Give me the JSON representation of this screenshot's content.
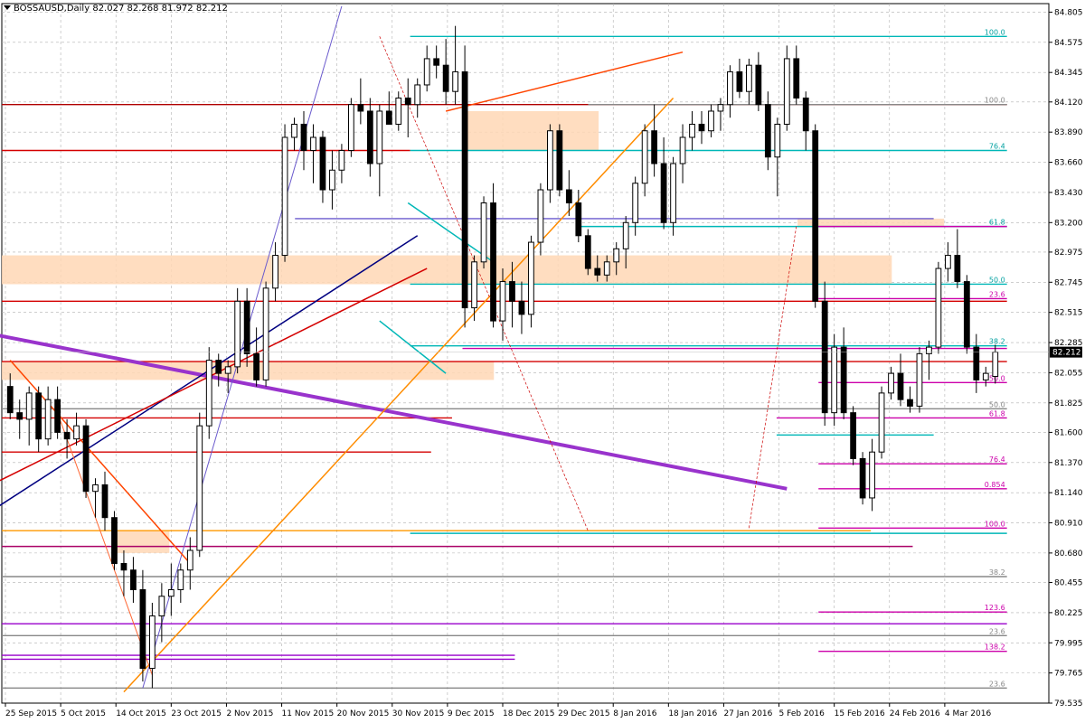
{
  "header": {
    "symbol_tf": "BOSSAUSD,Daily",
    "ohlc": "82.027 82.268 81.972 82.212"
  },
  "price_tag": "82.212",
  "chart_data": {
    "type": "candlestick",
    "title": "BOSSAUSD,Daily",
    "ylim": [
      79.535,
      84.87
    ],
    "grid": true,
    "y_ticks": [
      "84.805",
      "84.575",
      "84.345",
      "84.120",
      "83.890",
      "83.660",
      "83.430",
      "83.200",
      "82.975",
      "82.745",
      "82.515",
      "82.285",
      "82.055",
      "81.825",
      "81.600",
      "81.370",
      "81.140",
      "80.910",
      "80.680",
      "80.455",
      "80.225",
      "79.995",
      "79.765",
      "79.535"
    ],
    "x_ticks": [
      "25 Sep 2015",
      "5 Oct 2015",
      "14 Oct 2015",
      "23 Oct 2015",
      "2 Nov 2015",
      "11 Nov 2015",
      "20 Nov 2015",
      "30 Nov 2015",
      "9 Dec 2015",
      "18 Dec 2015",
      "29 Dec 2015",
      "8 Jan 2016",
      "18 Jan 2016",
      "27 Jan 2016",
      "5 Feb 2016",
      "15 Feb 2016",
      "24 Feb 2016",
      "4 Mar 2016"
    ],
    "candles": [
      [
        81.95,
        82.05,
        81.7,
        81.75
      ],
      [
        81.75,
        81.85,
        81.55,
        81.7
      ],
      [
        81.7,
        81.95,
        81.5,
        81.9
      ],
      [
        81.9,
        81.95,
        81.45,
        81.55
      ],
      [
        81.55,
        81.95,
        81.5,
        81.85
      ],
      [
        81.85,
        81.95,
        81.55,
        81.6
      ],
      [
        81.6,
        81.7,
        81.4,
        81.55
      ],
      [
        81.55,
        81.75,
        81.5,
        81.65
      ],
      [
        81.65,
        81.7,
        81.1,
        81.15
      ],
      [
        81.15,
        81.25,
        80.95,
        81.2
      ],
      [
        81.2,
        81.3,
        80.85,
        80.95
      ],
      [
        80.95,
        81.0,
        80.55,
        80.6
      ],
      [
        80.6,
        80.7,
        80.35,
        80.55
      ],
      [
        80.55,
        80.65,
        80.3,
        80.4
      ],
      [
        80.4,
        80.55,
        79.7,
        79.8
      ],
      [
        79.8,
        80.3,
        79.65,
        80.2
      ],
      [
        80.2,
        80.45,
        80.0,
        80.35
      ],
      [
        80.35,
        80.6,
        80.2,
        80.4
      ],
      [
        80.4,
        80.6,
        80.3,
        80.55
      ],
      [
        80.55,
        80.8,
        80.4,
        80.7
      ],
      [
        80.7,
        81.75,
        80.65,
        81.65
      ],
      [
        81.65,
        82.25,
        81.55,
        82.15
      ],
      [
        82.15,
        82.2,
        81.95,
        82.05
      ],
      [
        82.05,
        82.15,
        81.9,
        82.1
      ],
      [
        82.1,
        82.7,
        82.05,
        82.6
      ],
      [
        82.6,
        82.7,
        82.1,
        82.2
      ],
      [
        82.2,
        82.4,
        81.95,
        82.0
      ],
      [
        82.0,
        82.75,
        81.95,
        82.7
      ],
      [
        82.7,
        83.05,
        82.6,
        82.95
      ],
      [
        82.95,
        83.95,
        82.9,
        83.85
      ],
      [
        83.85,
        84.0,
        83.75,
        83.95
      ],
      [
        83.95,
        84.05,
        83.6,
        83.75
      ],
      [
        83.75,
        83.95,
        83.5,
        83.85
      ],
      [
        83.85,
        83.9,
        83.35,
        83.45
      ],
      [
        83.45,
        83.75,
        83.3,
        83.6
      ],
      [
        83.6,
        83.8,
        83.5,
        83.75
      ],
      [
        83.75,
        84.15,
        83.7,
        84.1
      ],
      [
        84.1,
        84.3,
        83.95,
        84.05
      ],
      [
        84.05,
        84.15,
        83.55,
        83.65
      ],
      [
        83.65,
        84.1,
        83.4,
        84.05
      ],
      [
        84.05,
        84.2,
        83.95,
        83.95
      ],
      [
        83.95,
        84.2,
        83.9,
        84.15
      ],
      [
        84.15,
        84.3,
        83.85,
        84.1
      ],
      [
        84.1,
        84.3,
        84.0,
        84.25
      ],
      [
        84.25,
        84.55,
        84.2,
        84.45
      ],
      [
        84.45,
        84.55,
        84.3,
        84.4
      ],
      [
        84.4,
        84.6,
        84.1,
        84.2
      ],
      [
        84.2,
        84.7,
        84.1,
        84.35
      ],
      [
        84.35,
        84.55,
        82.4,
        82.55
      ],
      [
        82.55,
        82.95,
        82.45,
        82.9
      ],
      [
        82.9,
        83.4,
        82.85,
        83.35
      ],
      [
        83.35,
        83.5,
        82.4,
        82.45
      ],
      [
        82.45,
        82.85,
        82.3,
        82.75
      ],
      [
        82.75,
        82.9,
        82.4,
        82.6
      ],
      [
        82.6,
        82.75,
        82.35,
        82.5
      ],
      [
        82.5,
        83.1,
        82.4,
        83.05
      ],
      [
        83.05,
        83.5,
        82.95,
        83.45
      ],
      [
        83.45,
        83.95,
        83.35,
        83.9
      ],
      [
        83.9,
        83.95,
        83.4,
        83.45
      ],
      [
        83.45,
        83.6,
        83.25,
        83.35
      ],
      [
        83.35,
        83.45,
        83.05,
        83.1
      ],
      [
        83.1,
        83.15,
        82.8,
        82.85
      ],
      [
        82.85,
        82.95,
        82.75,
        82.8
      ],
      [
        82.8,
        82.95,
        82.75,
        82.9
      ],
      [
        82.9,
        83.05,
        82.8,
        83.0
      ],
      [
        83.0,
        83.25,
        82.85,
        83.2
      ],
      [
        83.2,
        83.55,
        83.1,
        83.5
      ],
      [
        83.5,
        83.95,
        83.4,
        83.9
      ],
      [
        83.9,
        84.1,
        83.55,
        83.65
      ],
      [
        83.65,
        83.85,
        83.15,
        83.2
      ],
      [
        83.2,
        83.7,
        83.1,
        83.65
      ],
      [
        83.65,
        83.95,
        83.5,
        83.85
      ],
      [
        83.85,
        84.05,
        83.75,
        83.95
      ],
      [
        83.95,
        84.05,
        83.8,
        83.9
      ],
      [
        83.9,
        84.1,
        83.85,
        84.05
      ],
      [
        84.05,
        84.15,
        83.9,
        84.1
      ],
      [
        84.1,
        84.4,
        84.0,
        84.35
      ],
      [
        84.35,
        84.45,
        84.15,
        84.2
      ],
      [
        84.2,
        84.45,
        84.1,
        84.4
      ],
      [
        84.4,
        84.5,
        84.05,
        84.1
      ],
      [
        84.1,
        84.2,
        83.6,
        83.7
      ],
      [
        83.7,
        84.0,
        83.4,
        83.95
      ],
      [
        83.95,
        84.55,
        83.9,
        84.45
      ],
      [
        84.45,
        84.55,
        84.1,
        84.15
      ],
      [
        84.15,
        84.2,
        83.75,
        83.9
      ],
      [
        83.9,
        83.95,
        82.55,
        82.6
      ],
      [
        82.6,
        82.75,
        81.65,
        81.75
      ],
      [
        81.75,
        82.35,
        81.65,
        82.25
      ],
      [
        82.25,
        82.4,
        81.7,
        81.75
      ],
      [
        81.75,
        81.8,
        81.35,
        81.4
      ],
      [
        81.4,
        81.45,
        81.05,
        81.1
      ],
      [
        81.1,
        81.55,
        81.0,
        81.45
      ],
      [
        81.45,
        81.95,
        81.4,
        81.9
      ],
      [
        81.9,
        82.1,
        81.85,
        82.05
      ],
      [
        82.05,
        82.2,
        81.8,
        81.85
      ],
      [
        81.85,
        81.95,
        81.75,
        81.8
      ],
      [
        81.8,
        82.25,
        81.75,
        82.2
      ],
      [
        82.2,
        82.3,
        82.0,
        82.25
      ],
      [
        82.25,
        82.9,
        82.2,
        82.85
      ],
      [
        82.85,
        83.05,
        82.75,
        82.95
      ],
      [
        82.95,
        83.15,
        82.7,
        82.75
      ],
      [
        82.75,
        82.8,
        82.2,
        82.25
      ],
      [
        82.25,
        82.35,
        81.9,
        82.0
      ],
      [
        82.0,
        82.1,
        81.95,
        82.05
      ],
      [
        82.027,
        82.268,
        81.972,
        82.212
      ]
    ],
    "levels": [
      {
        "y": 84.62,
        "color": "#00b7b7",
        "label": "100.0",
        "x0": 0.39,
        "x1": 0.96
      },
      {
        "y": 84.1,
        "color": "#b00000",
        "label": "",
        "x0": 0.0,
        "x1": 0.96
      },
      {
        "y": 84.1,
        "color": "#888888",
        "label": "100.0",
        "x0": 0.56,
        "x1": 0.96
      },
      {
        "y": 83.75,
        "color": "#d40000",
        "label": "",
        "x0": 0.0,
        "x1": 0.39
      },
      {
        "y": 83.75,
        "color": "#00b7b7",
        "label": "76.4",
        "x0": 0.39,
        "x1": 0.96
      },
      {
        "y": 83.23,
        "color": "#6a5acd",
        "label": "",
        "x0": 0.28,
        "x1": 0.89
      },
      {
        "y": 83.17,
        "color": "#00b7b7",
        "label": "61.8",
        "x0": 0.55,
        "x1": 0.96
      },
      {
        "y": 83.17,
        "color": "#cc00aa",
        "label": "",
        "x0": 0.78,
        "x1": 0.96
      },
      {
        "y": 82.73,
        "color": "#00b7b7",
        "label": "50.0",
        "x0": 0.39,
        "x1": 0.96
      },
      {
        "y": 82.6,
        "color": "#d40000",
        "label": "",
        "x0": 0.0,
        "x1": 0.96
      },
      {
        "y": 82.62,
        "color": "#cc00aa",
        "label": "23.6",
        "x0": 0.78,
        "x1": 0.96
      },
      {
        "y": 82.26,
        "color": "#00b7b7",
        "label": "38.2",
        "x0": 0.39,
        "x1": 0.96
      },
      {
        "y": 82.24,
        "color": "#cc00aa",
        "label": "",
        "x0": 0.44,
        "x1": 0.96
      },
      {
        "y": 82.14,
        "color": "#d40000",
        "label": "",
        "x0": 0.0,
        "x1": 0.96
      },
      {
        "y": 81.98,
        "color": "#cc00aa",
        "label": "50.0",
        "x0": 0.78,
        "x1": 0.96
      },
      {
        "y": 81.78,
        "color": "#888888",
        "label": "50.0",
        "x0": 0.0,
        "x1": 0.96
      },
      {
        "y": 81.71,
        "color": "#cc00aa",
        "label": "61.8",
        "x0": 0.74,
        "x1": 0.96
      },
      {
        "y": 81.71,
        "color": "#d40000",
        "label": "",
        "x0": 0.0,
        "x1": 0.43
      },
      {
        "y": 81.58,
        "color": "#00b7b7",
        "label": "",
        "x0": 0.74,
        "x1": 0.89
      },
      {
        "y": 81.45,
        "color": "#d40000",
        "label": "",
        "x0": 0.0,
        "x1": 0.41
      },
      {
        "y": 81.36,
        "color": "#cc00aa",
        "label": "76.4",
        "x0": 0.78,
        "x1": 0.96
      },
      {
        "y": 81.17,
        "color": "#cc00aa",
        "label": "0.854",
        "x0": 0.78,
        "x1": 0.96
      },
      {
        "y": 80.87,
        "color": "#cc00aa",
        "label": "100.0",
        "x0": 0.78,
        "x1": 0.96
      },
      {
        "y": 80.85,
        "color": "#ff9900",
        "label": "",
        "x0": 0.0,
        "x1": 0.83
      },
      {
        "y": 80.83,
        "color": "#00b7b7",
        "label": "",
        "x0": 0.39,
        "x1": 0.96
      },
      {
        "y": 80.73,
        "color": "#aa0066",
        "label": "",
        "x0": 0.0,
        "x1": 0.87
      },
      {
        "y": 80.5,
        "color": "#888888",
        "label": "38.2",
        "x0": 0.0,
        "x1": 0.96
      },
      {
        "y": 80.23,
        "color": "#cc00aa",
        "label": "123.6",
        "x0": 0.78,
        "x1": 0.96
      },
      {
        "y": 80.14,
        "color": "#9900cc",
        "label": "",
        "x0": 0.0,
        "x1": 0.96
      },
      {
        "y": 80.05,
        "color": "#888888",
        "label": "23.6",
        "x0": 0.0,
        "x1": 0.96
      },
      {
        "y": 79.93,
        "color": "#cc00aa",
        "label": "138.2",
        "x0": 0.78,
        "x1": 0.96
      },
      {
        "y": 79.9,
        "color": "#9900cc",
        "label": "",
        "x0": 0.0,
        "x1": 0.49
      },
      {
        "y": 79.87,
        "color": "#9900cc",
        "label": "",
        "x0": 0.0,
        "x1": 0.49
      },
      {
        "y": 79.65,
        "color": "#888888",
        "label": "23.6",
        "x0": 0.0,
        "x1": 0.96
      }
    ],
    "zones": [
      {
        "y0": 84.05,
        "y1": 83.75,
        "x0": 0.44,
        "x1": 0.57
      },
      {
        "y0": 82.95,
        "y1": 82.73,
        "x0": 0.0,
        "x1": 0.85
      },
      {
        "y0": 82.14,
        "y1": 82.0,
        "x0": 0.0,
        "x1": 0.47
      },
      {
        "y0": 80.85,
        "y1": 80.68,
        "x0": 0.11,
        "x1": 0.16
      },
      {
        "y0": 83.23,
        "y1": 83.17,
        "x0": 0.76,
        "x1": 0.9
      }
    ],
    "trendlines": [
      {
        "a": [
          -2,
          82.35
        ],
        "b": [
          82,
          81.17
        ],
        "color": "#9933cc",
        "w": 4
      },
      {
        "a": [
          -2,
          81.0
        ],
        "b": [
          43,
          83.1
        ],
        "color": "#000080",
        "w": 1.5
      },
      {
        "a": [
          -2,
          81.2
        ],
        "b": [
          44,
          82.85
        ],
        "color": "#d40000",
        "w": 1.5
      },
      {
        "a": [
          14,
          79.65
        ],
        "b": [
          35,
          84.85
        ],
        "color": "#6a5acd",
        "w": 1
      },
      {
        "a": [
          12,
          79.62
        ],
        "b": [
          70,
          84.15
        ],
        "color": "#ff8c00",
        "w": 1.5
      },
      {
        "a": [
          46,
          84.05
        ],
        "b": [
          71,
          84.5
        ],
        "color": "#ff4400",
        "w": 1.5
      },
      {
        "a": [
          0,
          82.15
        ],
        "b": [
          19,
          80.6
        ],
        "color": "#ff4400",
        "w": 1.5
      },
      {
        "a": [
          5,
          81.75
        ],
        "b": [
          15,
          79.75
        ],
        "color": "#ff6633",
        "w": 1
      },
      {
        "a": [
          42,
          83.35
        ],
        "b": [
          51,
          82.9
        ],
        "color": "#00b7b7",
        "w": 1.5
      },
      {
        "a": [
          39,
          82.45
        ],
        "b": [
          46,
          82.05
        ],
        "color": "#00b7b7",
        "w": 1.5
      },
      {
        "a": [
          39,
          84.62
        ],
        "b": [
          61,
          80.85
        ],
        "color": "#cc0000",
        "w": 0.7,
        "dash": "3,2"
      },
      {
        "a": [
          78,
          80.87
        ],
        "b": [
          83,
          83.17
        ],
        "color": "#cc0000",
        "w": 0.7,
        "dash": "3,2"
      }
    ]
  }
}
